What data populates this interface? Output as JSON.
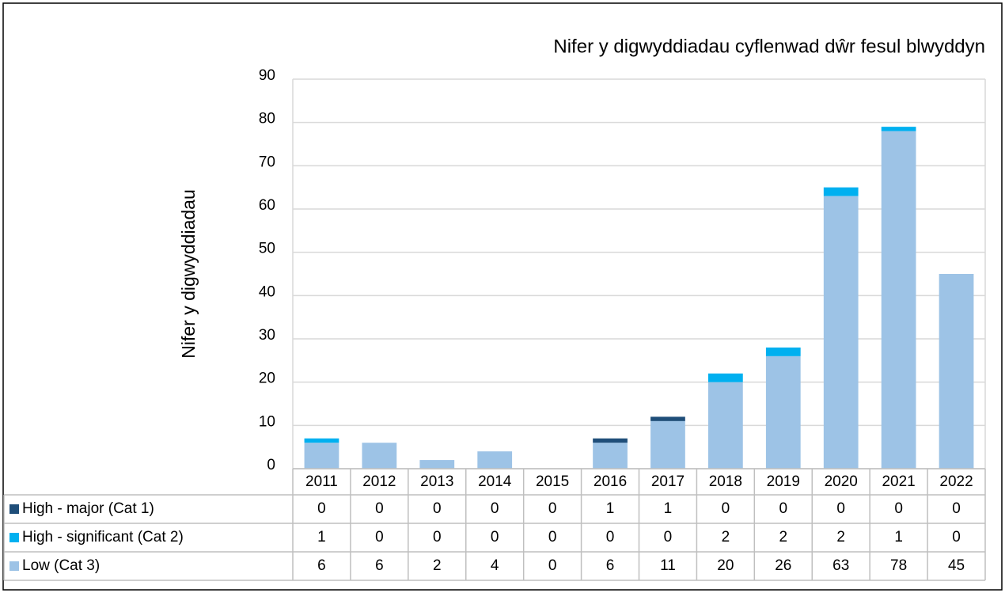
{
  "chart_data": {
    "type": "stacked_bar",
    "title": "Nifer y digwyddiadau cyflenwad dŵr fesul blwyddyn",
    "y_label": "Nifer y digwyddiadau",
    "categories": [
      "2011",
      "2012",
      "2013",
      "2014",
      "2015",
      "2016",
      "2017",
      "2018",
      "2019",
      "2020",
      "2021",
      "2022"
    ],
    "series": [
      {
        "name": "High - major (Cat 1)",
        "color": "#1f4e79",
        "values": [
          0,
          0,
          0,
          0,
          0,
          1,
          1,
          0,
          0,
          0,
          0,
          0
        ]
      },
      {
        "name": "High - significant (Cat 2)",
        "color": "#00b0f0",
        "values": [
          1,
          0,
          0,
          0,
          0,
          0,
          0,
          2,
          2,
          2,
          1,
          0
        ]
      },
      {
        "name": "Low (Cat 3)",
        "color": "#9dc3e6",
        "values": [
          6,
          6,
          2,
          4,
          0,
          6,
          11,
          20,
          26,
          63,
          78,
          45
        ]
      }
    ],
    "ylim": [
      0,
      90
    ],
    "yticks": [
      0,
      10,
      20,
      30,
      40,
      50,
      60,
      70,
      80,
      90
    ],
    "grid": true,
    "data_table": true
  }
}
